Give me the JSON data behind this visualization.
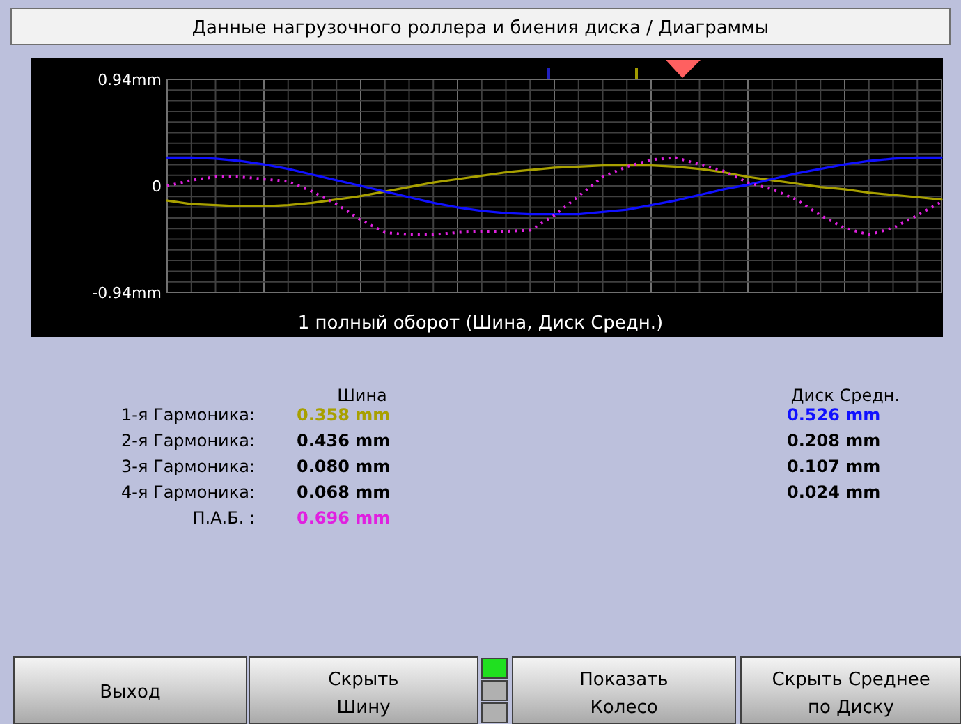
{
  "chart_data": {
    "type": "line",
    "title": "Данные нагрузочного роллера и биения диска / Диаграммы",
    "xlabel": "1 полный оборот  (Шина, Диск Средн.)",
    "categories": [
      null,
      null,
      null,
      null,
      null,
      null,
      null,
      null,
      null,
      null,
      null,
      null,
      null,
      null,
      null,
      null,
      null,
      null,
      null,
      null,
      null,
      null,
      null,
      null,
      null,
      null,
      null,
      null,
      null,
      null,
      null,
      null,
      null
    ],
    "ylim": [
      -0.94,
      0.94
    ],
    "yticks": [
      {
        "value": -0.94,
        "label": "-0.94mm"
      },
      0,
      {
        "value": 0.94,
        "label": "0.94mm"
      }
    ],
    "grid": true,
    "series": [
      {
        "color": "#a8a000",
        "line_style": "solid",
        "values": [
          -0.13,
          -0.16,
          -0.17,
          -0.18,
          -0.18,
          -0.17,
          -0.15,
          -0.12,
          -0.09,
          -0.05,
          -0.01,
          0.03,
          0.06,
          0.09,
          0.12,
          0.14,
          0.16,
          0.17,
          0.18,
          0.18,
          0.18,
          0.17,
          0.15,
          0.12,
          0.08,
          0.05,
          0.02,
          -0.01,
          -0.03,
          -0.06,
          -0.08,
          -0.1,
          -0.12
        ]
      },
      {
        "color": "#1010ff",
        "line_style": "solid",
        "values": [
          0.25,
          0.25,
          0.24,
          0.22,
          0.19,
          0.15,
          0.1,
          0.05,
          0,
          -0.05,
          -0.1,
          -0.15,
          -0.19,
          -0.22,
          -0.24,
          -0.25,
          -0.25,
          -0.25,
          -0.23,
          -0.21,
          -0.17,
          -0.13,
          -0.08,
          -0.03,
          0.01,
          0.06,
          0.11,
          0.15,
          0.19,
          0.22,
          0.24,
          0.25,
          0.25
        ]
      },
      {
        "color": "#e020e0",
        "line_style": "dotted",
        "values": [
          0,
          0.05,
          0.08,
          0.08,
          0.06,
          0.04,
          -0.05,
          -0.16,
          -0.3,
          -0.41,
          -0.43,
          -0.43,
          -0.41,
          -0.4,
          -0.4,
          -0.39,
          -0.26,
          -0.09,
          0.08,
          0.17,
          0.23,
          0.25,
          0.19,
          0.13,
          0.03,
          -0.03,
          -0.12,
          -0.26,
          -0.37,
          -0.43,
          -0.37,
          -0.26,
          -0.14
        ]
      }
    ],
    "annotations": [
      "Шина",
      "Диск Средн.",
      "1-я Гармоника:",
      "2-я Гармоника:",
      "3-я Гармоника:",
      "4-я Гармоника:",
      "П.А.Б. :",
      "0.358 mm",
      "0.436 mm",
      "0.080 mm",
      "0.068 mm",
      "0.696 mm",
      "0.526 mm",
      "0.208 mm",
      "0.107 mm",
      "0.024 mm",
      "Выход",
      "Скрыть Шину",
      "Показать Колесо",
      "Скрыть Среднее по Диску"
    ]
  }
}
